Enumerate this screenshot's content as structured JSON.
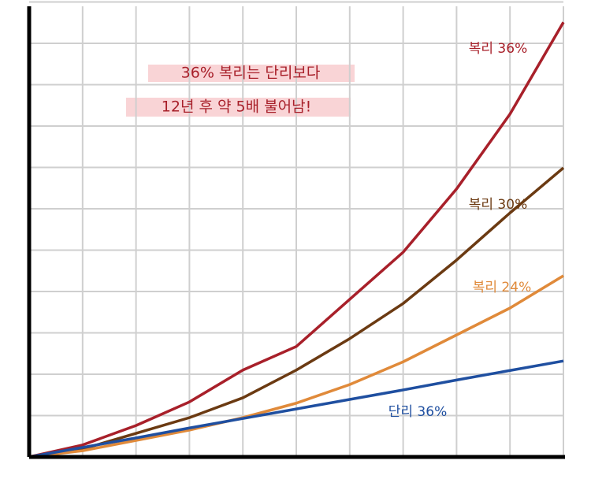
{
  "chart_data": {
    "type": "line",
    "annotations": [
      "36% 복리는 단리보다",
      "12년 후  약 5배 불어남!"
    ],
    "x": [
      0,
      1,
      2,
      3,
      4,
      5,
      6,
      7,
      8,
      9,
      10
    ],
    "series": [
      {
        "name": "복리 36%",
        "color": "#a8202a",
        "values": [
          0,
          0.29,
          0.76,
          1.33,
          2.1,
          2.67,
          3.81,
          4.95,
          6.48,
          8.29,
          10.51
        ]
      },
      {
        "name": "복리 30%",
        "color": "#6b3a12",
        "values": [
          0,
          0.19,
          0.57,
          0.95,
          1.43,
          2.1,
          2.86,
          3.71,
          4.76,
          5.9,
          6.99
        ]
      },
      {
        "name": "복리 24%",
        "color": "#e08a3a",
        "values": [
          0,
          0.15,
          0.4,
          0.65,
          0.95,
          1.3,
          1.75,
          2.3,
          2.95,
          3.6,
          4.38
        ]
      },
      {
        "name": "단리 36%",
        "color": "#1f4fa0",
        "values": [
          0,
          0.23,
          0.46,
          0.7,
          0.93,
          1.16,
          1.39,
          1.62,
          1.86,
          2.09,
          2.32
        ]
      }
    ],
    "xlim": [
      0,
      10
    ],
    "ylim": [
      0,
      11
    ],
    "xticks": [
      0,
      1,
      2,
      3,
      4,
      5,
      6,
      7,
      8,
      9,
      10
    ],
    "yticks": [
      0,
      1,
      2,
      3,
      4,
      5,
      6,
      7,
      8,
      9,
      10,
      11
    ],
    "grid": true
  }
}
